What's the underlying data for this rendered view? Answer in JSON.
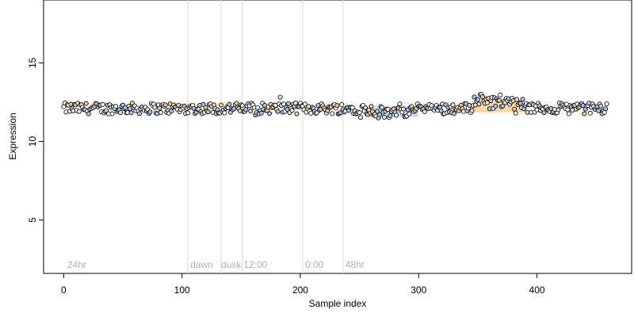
{
  "chart_data": {
    "type": "scatter",
    "xlabel": "Sample index",
    "ylabel": "Expression",
    "xlim": [
      -17,
      480
    ],
    "ylim": [
      1.6,
      19.0
    ],
    "x_ticks": [
      0,
      100,
      200,
      300,
      400
    ],
    "y_ticks": [
      5,
      10,
      15
    ],
    "grid": false,
    "n_points": 460,
    "y_mean_approx": 12.1,
    "y_range_approx": [
      11.3,
      13.0
    ],
    "segment_dividers": [
      105,
      133,
      151,
      202,
      236
    ],
    "segment_labels": [
      {
        "x": 3,
        "label": "24hr"
      },
      {
        "x": 107,
        "label": "dawn"
      },
      {
        "x": 133,
        "label": "dusk"
      },
      {
        "x": 152,
        "label": "12:00"
      },
      {
        "x": 204,
        "label": "0:00"
      },
      {
        "x": 238,
        "label": "48hr"
      }
    ],
    "highlight_bands": [
      {
        "x": [
          345,
          392
        ],
        "color": "#f0b860",
        "y_center": 12.2
      },
      {
        "x": [
          258,
          300
        ],
        "color": "#9cc0e8",
        "y_center": 11.9
      }
    ],
    "point_fills": [
      "#f2c79a",
      "#a9c6ea",
      "#ffffff",
      "#e8e8e8"
    ],
    "colors": {
      "axis": "#000000",
      "divider": "#d8d8d8",
      "segment_label": "#b0b0b0",
      "point_stroke": "#000000"
    }
  }
}
